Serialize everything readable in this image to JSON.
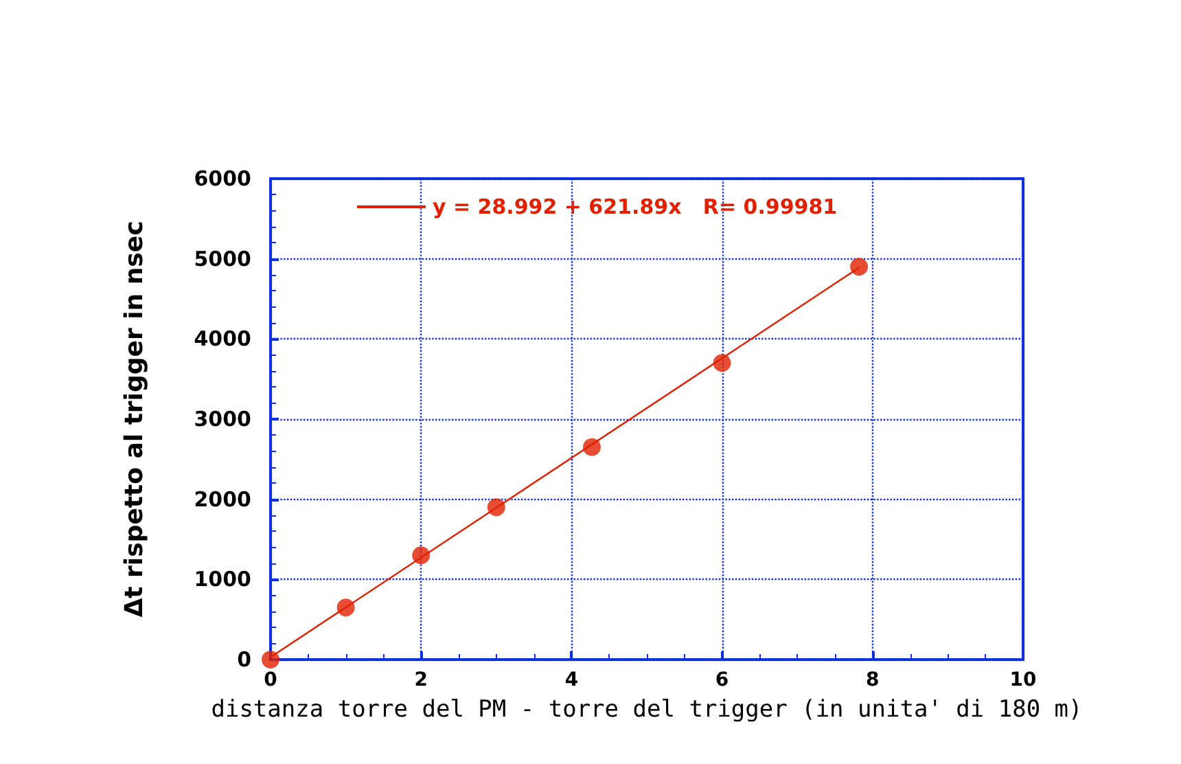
{
  "chart_data": {
    "type": "scatter",
    "xlabel": "distanza torre del PM - torre del trigger (in unita' di 180 m)",
    "ylabel": "Δt rispetto al trigger in nsec",
    "series": [
      {
        "color": "#e02000",
        "marker": "circle",
        "x": [
          0,
          1,
          2,
          3,
          4.27,
          6,
          7.82
        ],
        "values": [
          0,
          650,
          1300,
          1900,
          2650,
          3700,
          4900
        ]
      },
      {
        "type": "line",
        "name": "y = 28.992 + 621.89x   R= 0.99981",
        "color": "#e02000",
        "line_style": "solid",
        "marker": "none",
        "x": [
          0,
          7.82
        ],
        "values": [
          30,
          4890
        ]
      }
    ],
    "xlim": [
      0,
      10
    ],
    "xticks": [
      0,
      2,
      4,
      6,
      8,
      10
    ],
    "ylim": [
      0,
      6000
    ],
    "yticks": [
      0,
      1000,
      2000,
      3000,
      4000,
      5000,
      6000
    ],
    "grid": true,
    "legend": "top left"
  }
}
